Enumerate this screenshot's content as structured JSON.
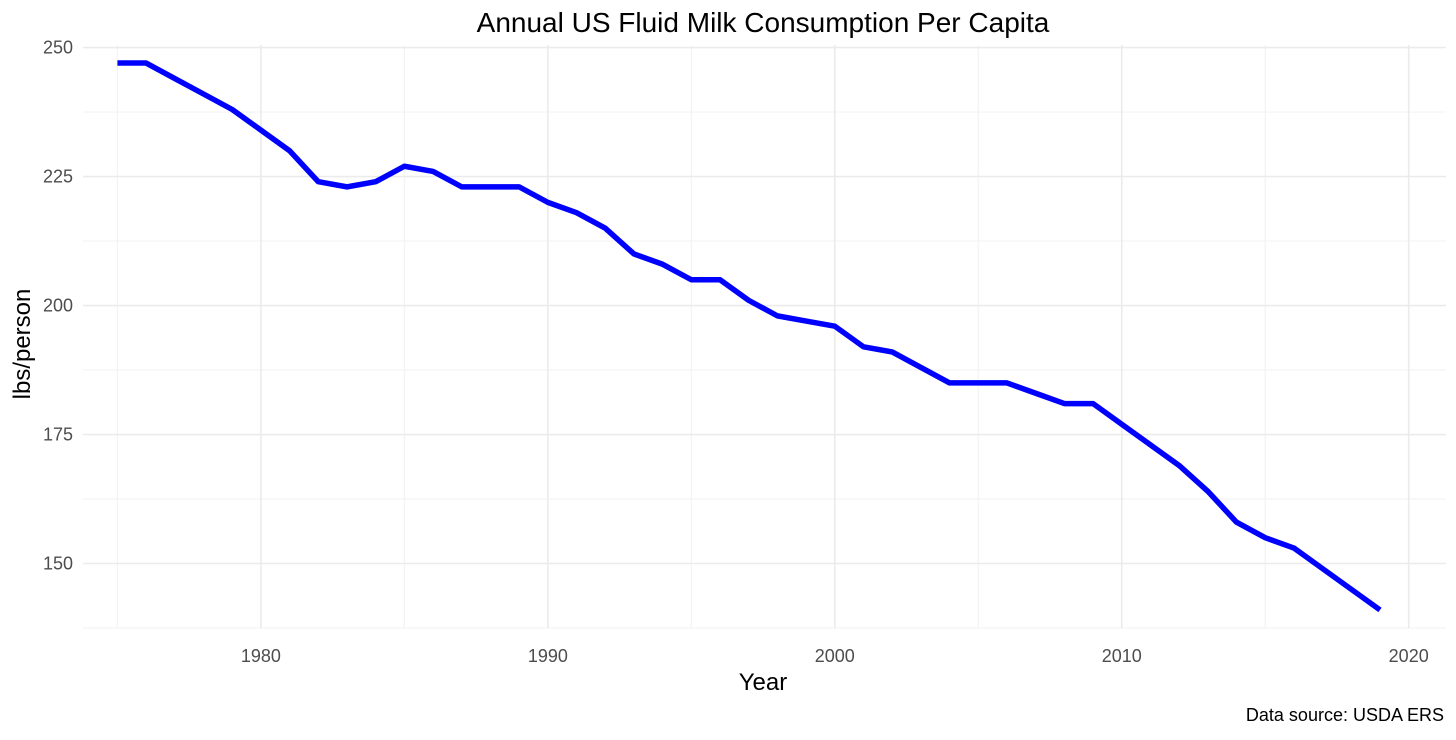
{
  "chart_data": {
    "type": "line",
    "title": "Annual US Fluid Milk Consumption Per Capita",
    "xlabel": "Year",
    "ylabel": "lbs/person",
    "caption": "Data source: USDA ERS",
    "xlim": [
      1973.8,
      2021.3
    ],
    "ylim": [
      137.5,
      250.5
    ],
    "x_ticks": [
      1980,
      1990,
      2000,
      2010,
      2020
    ],
    "x_minor_ticks": [
      1975,
      1985,
      1995,
      2005,
      2015
    ],
    "y_ticks": [
      150,
      175,
      200,
      225,
      250
    ],
    "y_minor_ticks": [
      137.5,
      162.5,
      187.5,
      212.5,
      237.5
    ],
    "grid": true,
    "legend": "none",
    "series": [
      {
        "color": "#0000ff",
        "x": [
          1975,
          1976,
          1977,
          1978,
          1979,
          1980,
          1981,
          1982,
          1983,
          1984,
          1985,
          1986,
          1987,
          1988,
          1989,
          1990,
          1991,
          1992,
          1993,
          1994,
          1995,
          1996,
          1997,
          1998,
          1999,
          2000,
          2001,
          2002,
          2003,
          2004,
          2005,
          2006,
          2007,
          2008,
          2009,
          2010,
          2011,
          2012,
          2013,
          2014,
          2015,
          2016,
          2017,
          2018,
          2019
        ],
        "y": [
          247,
          247,
          244,
          241,
          238,
          234,
          230,
          224,
          223,
          224,
          227,
          226,
          223,
          223,
          223,
          220,
          218,
          215,
          210,
          208,
          205,
          205,
          201,
          198,
          197,
          196,
          192,
          191,
          188,
          185,
          185,
          185,
          183,
          181,
          181,
          177,
          173,
          169,
          164,
          158,
          155,
          153,
          149,
          145,
          141
        ]
      }
    ]
  }
}
